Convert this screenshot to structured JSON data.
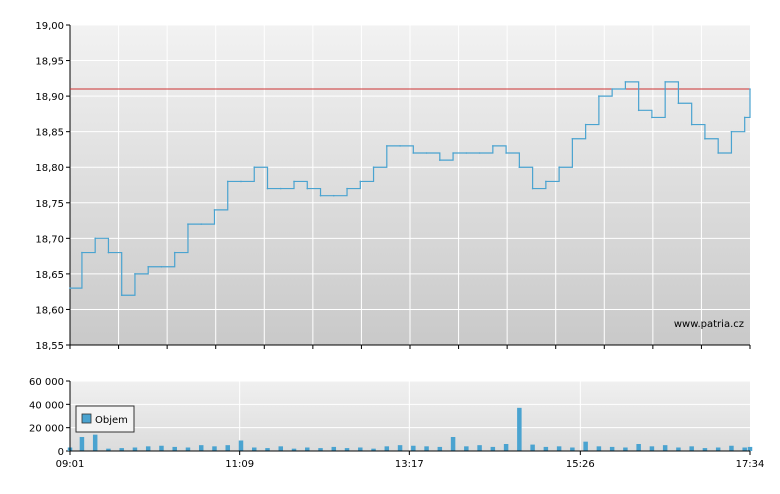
{
  "chart_data": [
    {
      "type": "line",
      "title": "",
      "ylim": [
        18.55,
        19.0
      ],
      "yticks": [
        "19,00",
        "18,95",
        "18,90",
        "18,85",
        "18,80",
        "18,75",
        "18,70",
        "18,65",
        "18,60",
        "18,55"
      ],
      "ytick_values": [
        19.0,
        18.95,
        18.9,
        18.85,
        18.8,
        18.75,
        18.7,
        18.65,
        18.6,
        18.55
      ],
      "reference_line": {
        "value": 18.91,
        "color": "#cc3333"
      },
      "watermark": "www.patria.cz",
      "grid": true,
      "series": [
        {
          "color": "#4aa3d0",
          "x": [
            "09:01",
            "09:10",
            "09:20",
            "09:30",
            "09:40",
            "09:50",
            "10:00",
            "10:10",
            "10:20",
            "10:30",
            "10:40",
            "10:50",
            "11:00",
            "11:10",
            "11:20",
            "11:30",
            "11:40",
            "11:50",
            "12:00",
            "12:10",
            "12:20",
            "12:30",
            "12:40",
            "12:50",
            "13:00",
            "13:10",
            "13:20",
            "13:30",
            "13:40",
            "13:50",
            "14:00",
            "14:10",
            "14:20",
            "14:30",
            "14:40",
            "14:50",
            "15:00",
            "15:10",
            "15:20",
            "15:30",
            "15:40",
            "15:50",
            "16:00",
            "16:10",
            "16:20",
            "16:30",
            "16:40",
            "16:50",
            "17:00",
            "17:10",
            "17:20",
            "17:30",
            "17:34"
          ],
          "values": [
            18.63,
            18.68,
            18.7,
            18.68,
            18.62,
            18.65,
            18.66,
            18.66,
            18.68,
            18.72,
            18.72,
            18.74,
            18.78,
            18.78,
            18.8,
            18.77,
            18.77,
            18.78,
            18.77,
            18.76,
            18.76,
            18.77,
            18.78,
            18.8,
            18.83,
            18.83,
            18.82,
            18.82,
            18.81,
            18.82,
            18.82,
            18.82,
            18.83,
            18.82,
            18.8,
            18.77,
            18.78,
            18.8,
            18.84,
            18.86,
            18.9,
            18.91,
            18.92,
            18.88,
            18.87,
            18.92,
            18.89,
            18.86,
            18.84,
            18.82,
            18.85,
            18.87,
            18.91
          ]
        }
      ]
    },
    {
      "type": "bar",
      "title": "",
      "ylim": [
        0,
        60000
      ],
      "yticks": [
        "60 000",
        "40 000",
        "20 000",
        "0"
      ],
      "ytick_values": [
        60000,
        40000,
        20000,
        0
      ],
      "xticks": [
        "09:01",
        "11:09",
        "13:17",
        "15:26",
        "17:34"
      ],
      "legend": {
        "label": "Objem",
        "color": "#4aa3d0"
      },
      "grid": true,
      "series": [
        {
          "name": "Objem",
          "color": "#4aa3d0",
          "x": [
            "09:01",
            "09:10",
            "09:20",
            "09:30",
            "09:40",
            "09:50",
            "10:00",
            "10:10",
            "10:20",
            "10:30",
            "10:40",
            "10:50",
            "11:00",
            "11:10",
            "11:20",
            "11:30",
            "11:40",
            "11:50",
            "12:00",
            "12:10",
            "12:20",
            "12:30",
            "12:40",
            "12:50",
            "13:00",
            "13:10",
            "13:20",
            "13:30",
            "13:40",
            "13:50",
            "14:00",
            "14:10",
            "14:20",
            "14:30",
            "14:40",
            "14:50",
            "15:00",
            "15:10",
            "15:20",
            "15:30",
            "15:40",
            "15:50",
            "16:00",
            "16:10",
            "16:20",
            "16:30",
            "16:40",
            "16:50",
            "17:00",
            "17:10",
            "17:20",
            "17:30",
            "17:34"
          ],
          "values": [
            3000,
            12000,
            14000,
            2000,
            2500,
            3000,
            4000,
            4500,
            3500,
            3000,
            5000,
            4000,
            5000,
            9000,
            3000,
            2500,
            4000,
            2000,
            3000,
            2500,
            3500,
            2500,
            3000,
            2000,
            4000,
            5000,
            4500,
            4000,
            3500,
            12000,
            4000,
            5000,
            3500,
            6000,
            37000,
            5500,
            3500,
            4000,
            3000,
            8000,
            4000,
            3500,
            3000,
            6000,
            4000,
            5000,
            3000,
            4000,
            2500,
            3000,
            4500,
            3000,
            3500
          ]
        }
      ]
    }
  ]
}
